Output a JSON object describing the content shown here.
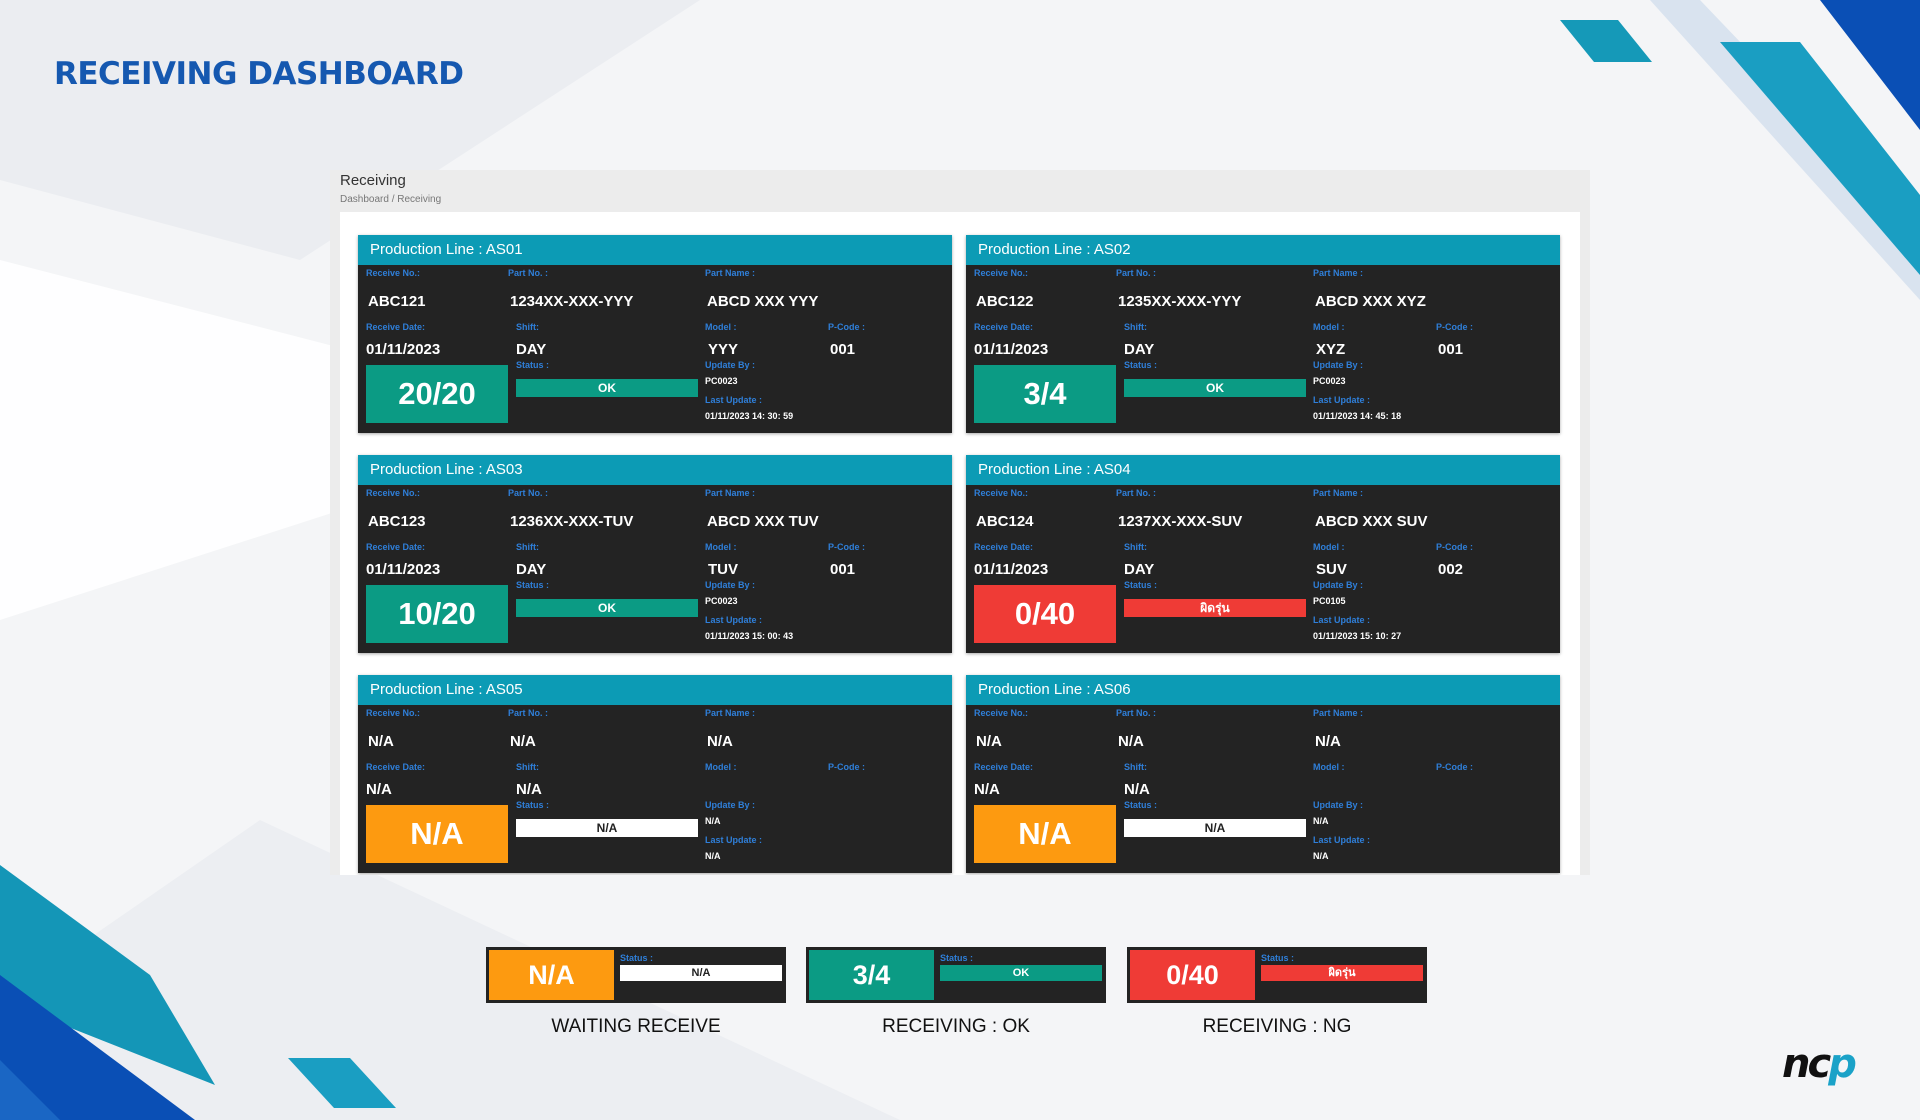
{
  "page_title": "RECEIVING DASHBOARD",
  "window": {
    "title": "Receiving",
    "breadcrumb": "Dashboard  /  Receiving"
  },
  "colors": {
    "header_teal": "#0c9bb5",
    "card_bg": "#232323",
    "ok_green": "#0b9b84",
    "ng_red": "#ef3b36",
    "waiting_orange": "#fd9a10",
    "label_blue": "#2f7fd9",
    "title_blue": "#1558b0"
  },
  "cards": [
    {
      "header": "Production Line : AS01",
      "state": "ok",
      "receive_no_label": "Receive No.:",
      "receive_no": "ABC121",
      "part_no_label": "Part No. :",
      "part_no": "1234XX-XXX-YYY",
      "part_name_label": "Part Name :",
      "part_name": "ABCD XXX YYY",
      "receive_date_label": "Receive Date:",
      "receive_date": "01/11/2023",
      "shift_label": "Shift:",
      "shift": "DAY",
      "model_label": "Model :",
      "model": "YYY",
      "pcode_label": "P-Code :",
      "pcode": "001",
      "status_label": "Status :",
      "status": "OK",
      "quantity": "20/20",
      "update_by_label": "Update By :",
      "update_by": "PC0023",
      "last_update_label": "Last Update :",
      "last_update": "01/11/2023 14: 30: 59"
    },
    {
      "header": "Production Line : AS02",
      "state": "ok",
      "receive_no_label": "Receive No.:",
      "receive_no": "ABC122",
      "part_no_label": "Part No. :",
      "part_no": "1235XX-XXX-YYY",
      "part_name_label": "Part Name :",
      "part_name": "ABCD XXX XYZ",
      "receive_date_label": "Receive Date:",
      "receive_date": "01/11/2023",
      "shift_label": "Shift:",
      "shift": "DAY",
      "model_label": "Model :",
      "model": "XYZ",
      "pcode_label": "P-Code :",
      "pcode": "001",
      "status_label": "Status :",
      "status": "OK",
      "quantity": "3/4",
      "update_by_label": "Update By :",
      "update_by": "PC0023",
      "last_update_label": "Last Update :",
      "last_update": "01/11/2023 14: 45: 18"
    },
    {
      "header": "Production Line : AS03",
      "state": "ok",
      "receive_no_label": "Receive No.:",
      "receive_no": "ABC123",
      "part_no_label": "Part No. :",
      "part_no": "1236XX-XXX-TUV",
      "part_name_label": "Part Name :",
      "part_name": "ABCD XXX TUV",
      "receive_date_label": "Receive Date:",
      "receive_date": "01/11/2023",
      "shift_label": "Shift:",
      "shift": "DAY",
      "model_label": "Model :",
      "model": "TUV",
      "pcode_label": "P-Code :",
      "pcode": "001",
      "status_label": "Status :",
      "status": "OK",
      "quantity": "10/20",
      "update_by_label": "Update By :",
      "update_by": "PC0023",
      "last_update_label": "Last Update :",
      "last_update": "01/11/2023 15: 00: 43"
    },
    {
      "header": "Production Line : AS04",
      "state": "ng",
      "receive_no_label": "Receive No.:",
      "receive_no": "ABC124",
      "part_no_label": "Part No. :",
      "part_no": "1237XX-XXX-SUV",
      "part_name_label": "Part Name :",
      "part_name": "ABCD XXX SUV",
      "receive_date_label": "Receive Date:",
      "receive_date": "01/11/2023",
      "shift_label": "Shift:",
      "shift": "DAY",
      "model_label": "Model :",
      "model": "SUV",
      "pcode_label": "P-Code :",
      "pcode": "002",
      "status_label": "Status :",
      "status": "ผิดรุ่น",
      "quantity": "0/40",
      "update_by_label": "Update By :",
      "update_by": "PC0105",
      "last_update_label": "Last Update :",
      "last_update": "01/11/2023 15: 10: 27"
    },
    {
      "header": "Production Line : AS05",
      "state": "waiting",
      "receive_no_label": "Receive No.:",
      "receive_no": "N/A",
      "part_no_label": "Part No. :",
      "part_no": "N/A",
      "part_name_label": "Part Name :",
      "part_name": "N/A",
      "receive_date_label": "Receive Date:",
      "receive_date": "N/A",
      "shift_label": "Shift:",
      "shift": "N/A",
      "model_label": "Model :",
      "model": "",
      "pcode_label": "P-Code :",
      "pcode": "",
      "status_label": "Status :",
      "status": "N/A",
      "quantity": "N/A",
      "update_by_label": "Update By :",
      "update_by": "N/A",
      "last_update_label": "Last Update :",
      "last_update": "N/A"
    },
    {
      "header": "Production Line : AS06",
      "state": "waiting",
      "receive_no_label": "Receive No.:",
      "receive_no": "N/A",
      "part_no_label": "Part No. :",
      "part_no": "N/A",
      "part_name_label": "Part Name :",
      "part_name": "N/A",
      "receive_date_label": "Receive Date:",
      "receive_date": "N/A",
      "shift_label": "Shift:",
      "shift": "N/A",
      "model_label": "Model :",
      "model": "",
      "pcode_label": "P-Code :",
      "pcode": "",
      "status_label": "Status :",
      "status": "N/A",
      "quantity": "N/A",
      "update_by_label": "Update By :",
      "update_by": "N/A",
      "last_update_label": "Last Update :",
      "last_update": "N/A"
    }
  ],
  "legend": [
    {
      "quantity": "N/A",
      "status_label": "Status :",
      "status": "N/A",
      "caption": "WAITING RECEIVE",
      "state": "waiting"
    },
    {
      "quantity": "3/4",
      "status_label": "Status :",
      "status": "OK",
      "caption": "RECEIVING : OK",
      "state": "ok"
    },
    {
      "quantity": "0/40",
      "status_label": "Status :",
      "status": "ผิดรุ่น",
      "caption": "RECEIVING : NG",
      "state": "ng"
    }
  ],
  "logo": {
    "part1": "nc",
    "part2": "p"
  }
}
